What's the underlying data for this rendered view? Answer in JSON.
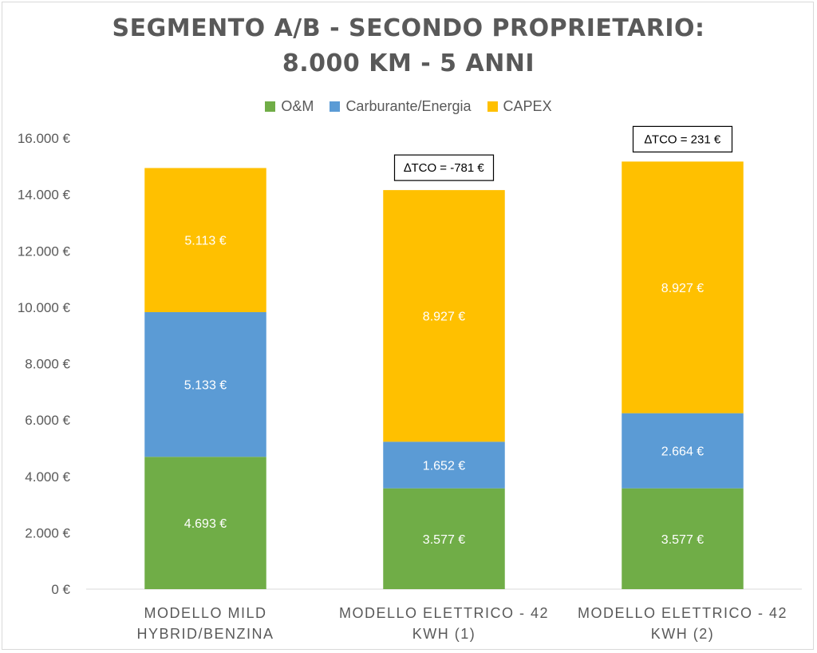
{
  "chart_data": {
    "type": "bar",
    "stacked": true,
    "title": [
      "SEGMENTO A/B - SECONDO PROPRIETARIO:",
      "8.000 KM - 5 ANNI"
    ],
    "categories": [
      [
        "MODELLO MILD",
        "HYBRID/BENZINA"
      ],
      [
        "MODELLO ELETTRICO - 42",
        "KWH (1)"
      ],
      [
        "MODELLO ELETTRICO - 42",
        "KWH (2)"
      ]
    ],
    "series": [
      {
        "name": "O&M",
        "color": "#70ad47",
        "values": [
          4693,
          3577,
          3577
        ],
        "labels": [
          "4.693 €",
          "3.577 €",
          "3.577 €"
        ]
      },
      {
        "name": "Carburante/Energia",
        "color": "#5b9bd5",
        "values": [
          5133,
          1652,
          2664
        ],
        "labels": [
          "5.133 €",
          "1.652 €",
          "2.664 €"
        ]
      },
      {
        "name": "CAPEX",
        "color": "#ffc000",
        "values": [
          5113,
          8927,
          8927
        ],
        "labels": [
          "5.113 €",
          "8.927 €",
          "8.927 €"
        ]
      }
    ],
    "annotations": [
      null,
      "∆TCO = -781 €",
      "∆TCO = 231 €"
    ],
    "ylim": [
      0,
      16000
    ],
    "yticks": [
      0,
      2000,
      4000,
      6000,
      8000,
      10000,
      12000,
      14000,
      16000
    ],
    "ytick_labels": [
      "0 €",
      "2.000 €",
      "4.000 €",
      "6.000 €",
      "8.000 €",
      "10.000 €",
      "12.000 €",
      "14.000 €",
      "16.000 €"
    ],
    "grid": false,
    "legend_position": "top-center"
  }
}
